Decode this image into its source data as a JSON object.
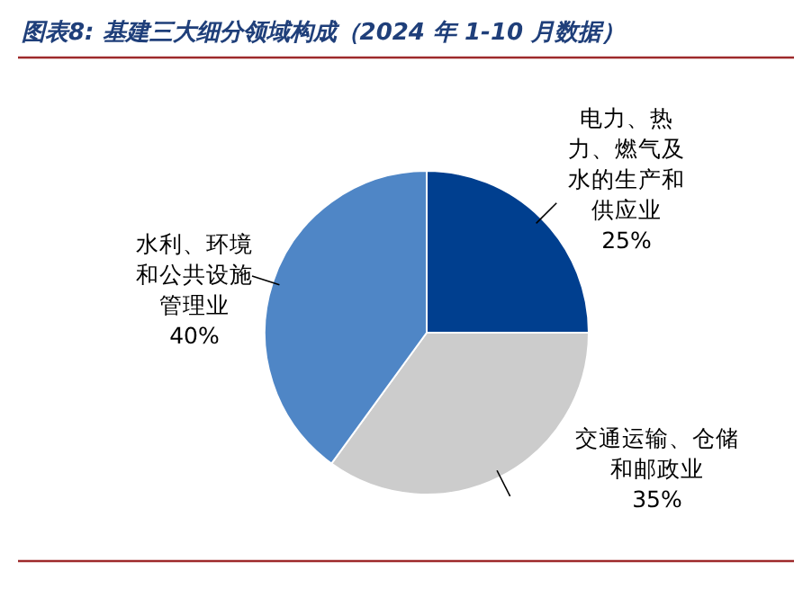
{
  "chart_data": {
    "type": "pie",
    "title": "图表8:  基建三大细分领域构成（2024 年 1-10 月数据）",
    "categories": [
      "电力、热力、燃气及水的生产和供应业",
      "交通运输、仓储和邮政业",
      "水利、环境和公共设施管理业"
    ],
    "values": [
      25,
      35,
      40
    ],
    "colors": [
      "#003f8f",
      "#cccccc",
      "#4f86c6"
    ],
    "value_labels": [
      "25%",
      "35%",
      "40%"
    ]
  }
}
